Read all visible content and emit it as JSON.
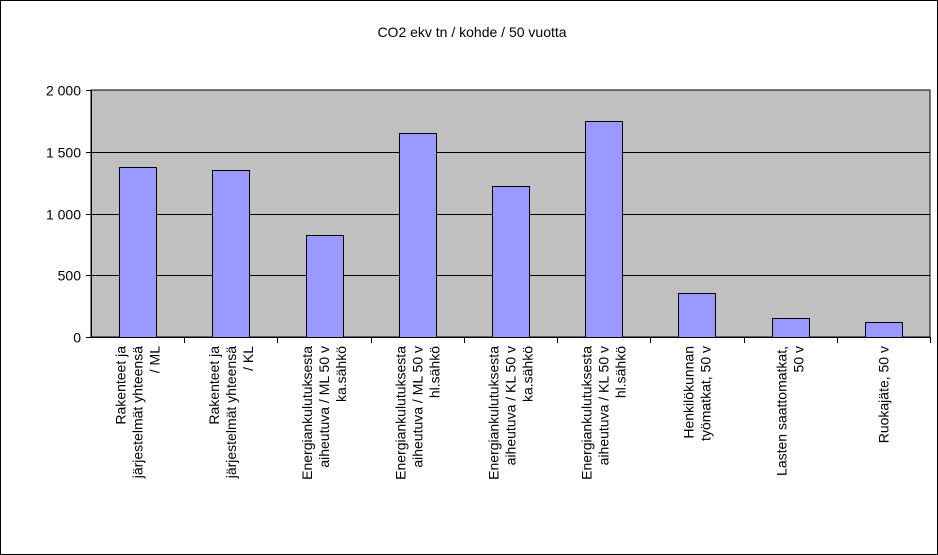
{
  "chart_data": {
    "type": "bar",
    "title": "CO2 ekv tn / kohde / 50 vuotta",
    "xlabel": "",
    "ylabel": "",
    "ylim": [
      0,
      2000
    ],
    "yticks": [
      0,
      500,
      1000,
      1500,
      2000
    ],
    "ytick_labels": [
      "0",
      "500",
      "1 000",
      "1 500",
      "2 000"
    ],
    "grid": true,
    "legend": "none",
    "categories": [
      [
        "Rakenteet ja",
        "järjestelmät yhteensä",
        "/ ML"
      ],
      [
        "Rakenteet ja",
        "järjestelmät yhteensä",
        "/ KL"
      ],
      [
        "Energiankulutuksesta",
        "aiheutuva / ML 50 v",
        "ka.sähkö"
      ],
      [
        "Energiankulutuksesta",
        "aiheutuva / ML 50 v",
        "hl.sähkö"
      ],
      [
        "Energiankulutuksesta",
        "aiheutuva / KL 50 v",
        "ka.sähkö"
      ],
      [
        "Energiankulutuksesta",
        "aiheutuva / KL 50 v",
        "hl.sähkö"
      ],
      [
        "Henkilökunnan",
        "työmatkat, 50 v"
      ],
      [
        "Lasten saattomatkat,",
        "50 v"
      ],
      [
        "Ruokajäte, 50 v"
      ]
    ],
    "values": [
      1375,
      1355,
      825,
      1655,
      1225,
      1750,
      355,
      155,
      120
    ],
    "colors": {
      "bar": "#9999ff",
      "plot_background": "#c0c0c0",
      "frame": "#000000"
    }
  }
}
